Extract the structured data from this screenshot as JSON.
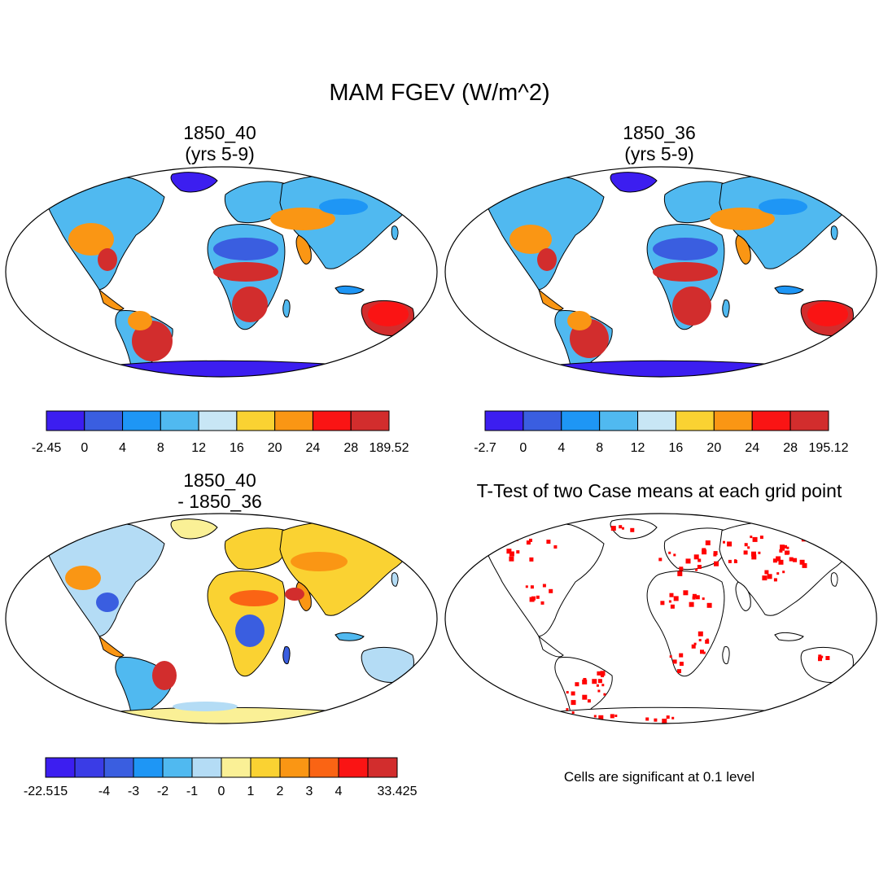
{
  "figure": {
    "title": "MAM FGEV (W/m^2)"
  },
  "panels": [
    {
      "title": "1850_40\n(yrs 5-9)",
      "colorbar": {
        "labels": [
          "-2.45",
          "0",
          "4",
          "8",
          "12",
          "16",
          "20",
          "24",
          "28",
          "189.52"
        ],
        "colors": [
          "#3c1ef0",
          "#3a5ee0",
          "#1e96f5",
          "#50b9f0",
          "#c8e6f5",
          "#fad232",
          "#fa9614",
          "#fa1414",
          "#d22d2d"
        ]
      }
    },
    {
      "title": "1850_36\n(yrs 5-9)",
      "colorbar": {
        "labels": [
          "-2.7",
          "0",
          "4",
          "8",
          "12",
          "16",
          "20",
          "24",
          "28",
          "195.12"
        ],
        "colors": [
          "#3c1ef0",
          "#3a5ee0",
          "#1e96f5",
          "#50b9f0",
          "#c8e6f5",
          "#fad232",
          "#fa9614",
          "#fa1414",
          "#d22d2d"
        ]
      }
    },
    {
      "title": "1850_40\n- 1850_36",
      "colorbar": {
        "labels": [
          "-22.515",
          "-4",
          "-3",
          "-2",
          "-1",
          "0",
          "1",
          "2",
          "3",
          "4",
          "33.425"
        ],
        "label_slots": [
          0,
          2,
          3,
          4,
          5,
          6,
          7,
          8,
          9,
          10,
          12
        ],
        "colors": [
          "#3c1ef0",
          "#3a3ce6",
          "#3a5ee0",
          "#1e96f5",
          "#50b9f0",
          "#b4dcf5",
          "#faf096",
          "#fad232",
          "#fa9614",
          "#fa6414",
          "#fa1414",
          "#d22d2d"
        ]
      }
    },
    {
      "title": "T-Test of two Case means at each grid point",
      "note": "Cells are significant at 0.1 level",
      "significance_color": "#ff0000"
    }
  ]
}
